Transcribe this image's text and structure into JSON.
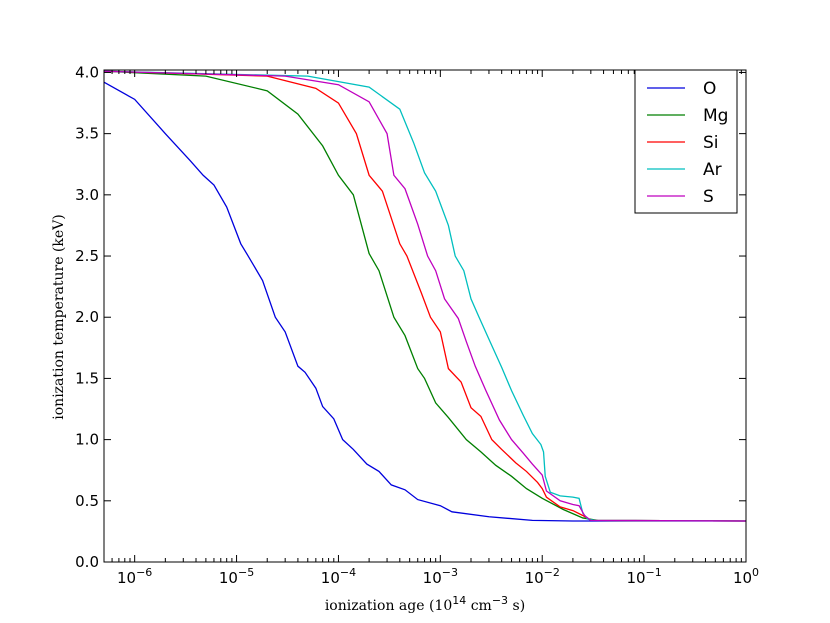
{
  "chart_data": {
    "type": "line",
    "title": "",
    "xlabel": "ionization age (10",
    "xlabel_sup1": "14",
    "xlabel_mid": " cm",
    "xlabel_sup2": "−3",
    "xlabel_end": " s)",
    "ylabel": "ionization temperature (keV)",
    "x_scale": "log",
    "xlim": [
      5e-07,
      1
    ],
    "ylim": [
      0.0,
      4.02
    ],
    "grid": false,
    "legend_position": "top-right",
    "x_ticks": [
      {
        "value": 1e-06,
        "base": "10",
        "exp": "-6"
      },
      {
        "value": 1e-05,
        "base": "10",
        "exp": "-5"
      },
      {
        "value": 0.0001,
        "base": "10",
        "exp": "-4"
      },
      {
        "value": 0.001,
        "base": "10",
        "exp": "-3"
      },
      {
        "value": 0.01,
        "base": "10",
        "exp": "-2"
      },
      {
        "value": 0.1,
        "base": "10",
        "exp": "-1"
      },
      {
        "value": 1,
        "base": "10",
        "exp": "0"
      }
    ],
    "y_ticks": [
      {
        "value": 0.0,
        "label": "0.0"
      },
      {
        "value": 0.5,
        "label": "0.5"
      },
      {
        "value": 1.0,
        "label": "1.0"
      },
      {
        "value": 1.5,
        "label": "1.5"
      },
      {
        "value": 2.0,
        "label": "2.0"
      },
      {
        "value": 2.5,
        "label": "2.5"
      },
      {
        "value": 3.0,
        "label": "3.0"
      },
      {
        "value": 3.5,
        "label": "3.5"
      },
      {
        "value": 4.0,
        "label": "4.0"
      }
    ],
    "series": [
      {
        "name": "O",
        "color": "#0000dd",
        "points": [
          [
            5e-07,
            3.92
          ],
          [
            1e-06,
            3.78
          ],
          [
            2e-06,
            3.5
          ],
          [
            3.5e-06,
            3.28
          ],
          [
            4.7e-06,
            3.16
          ],
          [
            6e-06,
            3.08
          ],
          [
            8e-06,
            2.9
          ],
          [
            1.1e-05,
            2.6
          ],
          [
            1.3e-05,
            2.5
          ],
          [
            1.8e-05,
            2.3
          ],
          [
            2.4e-05,
            2.0
          ],
          [
            3e-05,
            1.88
          ],
          [
            4e-05,
            1.6
          ],
          [
            4.7e-05,
            1.55
          ],
          [
            6e-05,
            1.42
          ],
          [
            7e-05,
            1.27
          ],
          [
            9e-05,
            1.17
          ],
          [
            0.00011,
            1.0
          ],
          [
            0.00014,
            0.92
          ],
          [
            0.00019,
            0.8
          ],
          [
            0.00025,
            0.74
          ],
          [
            0.00033,
            0.63
          ],
          [
            0.00045,
            0.59
          ],
          [
            0.0006,
            0.51
          ],
          [
            0.001,
            0.46
          ],
          [
            0.0013,
            0.41
          ],
          [
            0.003,
            0.37
          ],
          [
            0.008,
            0.34
          ],
          [
            0.02,
            0.335
          ],
          [
            1,
            0.335
          ]
        ]
      },
      {
        "name": "Mg",
        "color": "#007f00",
        "points": [
          [
            5e-07,
            4.01
          ],
          [
            5e-06,
            3.97
          ],
          [
            2e-05,
            3.85
          ],
          [
            4e-05,
            3.66
          ],
          [
            7e-05,
            3.4
          ],
          [
            0.0001,
            3.16
          ],
          [
            0.00014,
            3.0
          ],
          [
            0.0002,
            2.52
          ],
          [
            0.00025,
            2.38
          ],
          [
            0.00035,
            2.0
          ],
          [
            0.00045,
            1.85
          ],
          [
            0.0006,
            1.58
          ],
          [
            0.0007,
            1.5
          ],
          [
            0.0009,
            1.3
          ],
          [
            0.0012,
            1.18
          ],
          [
            0.0018,
            1.0
          ],
          [
            0.0025,
            0.9
          ],
          [
            0.0035,
            0.79
          ],
          [
            0.005,
            0.7
          ],
          [
            0.007,
            0.6
          ],
          [
            0.01,
            0.52
          ],
          [
            0.016,
            0.43
          ],
          [
            0.025,
            0.36
          ],
          [
            0.035,
            0.34
          ],
          [
            1,
            0.335
          ]
        ]
      },
      {
        "name": "Si",
        "color": "#ff0000",
        "points": [
          [
            5e-07,
            4.01
          ],
          [
            2e-05,
            3.97
          ],
          [
            6e-05,
            3.87
          ],
          [
            0.0001,
            3.75
          ],
          [
            0.00015,
            3.5
          ],
          [
            0.0002,
            3.16
          ],
          [
            0.00027,
            3.03
          ],
          [
            0.0004,
            2.6
          ],
          [
            0.00047,
            2.5
          ],
          [
            0.00065,
            2.2
          ],
          [
            0.0008,
            2.0
          ],
          [
            0.001,
            1.88
          ],
          [
            0.0012,
            1.58
          ],
          [
            0.0016,
            1.47
          ],
          [
            0.002,
            1.26
          ],
          [
            0.0025,
            1.19
          ],
          [
            0.0032,
            1.0
          ],
          [
            0.004,
            0.92
          ],
          [
            0.0055,
            0.81
          ],
          [
            0.007,
            0.74
          ],
          [
            0.009,
            0.65
          ],
          [
            0.01,
            0.6
          ],
          [
            0.011,
            0.53
          ],
          [
            0.015,
            0.45
          ],
          [
            0.02,
            0.42
          ],
          [
            0.025,
            0.38
          ],
          [
            0.03,
            0.34
          ],
          [
            1,
            0.335
          ]
        ]
      },
      {
        "name": "Ar",
        "color": "#00bfbf",
        "points": [
          [
            5e-07,
            4.01
          ],
          [
            5e-05,
            3.97
          ],
          [
            0.0002,
            3.88
          ],
          [
            0.0004,
            3.7
          ],
          [
            0.00055,
            3.42
          ],
          [
            0.0007,
            3.18
          ],
          [
            0.0009,
            3.03
          ],
          [
            0.0012,
            2.75
          ],
          [
            0.0014,
            2.5
          ],
          [
            0.0017,
            2.38
          ],
          [
            0.002,
            2.15
          ],
          [
            0.0024,
            2.0
          ],
          [
            0.003,
            1.82
          ],
          [
            0.004,
            1.59
          ],
          [
            0.005,
            1.4
          ],
          [
            0.0065,
            1.2
          ],
          [
            0.008,
            1.05
          ],
          [
            0.0097,
            0.96
          ],
          [
            0.0103,
            0.9
          ],
          [
            0.0107,
            0.7
          ],
          [
            0.012,
            0.57
          ],
          [
            0.015,
            0.54
          ],
          [
            0.02,
            0.53
          ],
          [
            0.023,
            0.52
          ],
          [
            0.025,
            0.4
          ],
          [
            0.028,
            0.35
          ],
          [
            0.033,
            0.34
          ],
          [
            1,
            0.335
          ]
        ]
      },
      {
        "name": "S",
        "color": "#bf00bf",
        "points": [
          [
            5e-07,
            4.01
          ],
          [
            3e-05,
            3.97
          ],
          [
            0.0001,
            3.9
          ],
          [
            0.0002,
            3.76
          ],
          [
            0.0003,
            3.5
          ],
          [
            0.00035,
            3.16
          ],
          [
            0.00045,
            3.05
          ],
          [
            0.0006,
            2.76
          ],
          [
            0.00075,
            2.5
          ],
          [
            0.0009,
            2.38
          ],
          [
            0.0011,
            2.15
          ],
          [
            0.0015,
            1.99
          ],
          [
            0.0018,
            1.8
          ],
          [
            0.0022,
            1.6
          ],
          [
            0.0028,
            1.4
          ],
          [
            0.0038,
            1.16
          ],
          [
            0.005,
            1.0
          ],
          [
            0.0065,
            0.89
          ],
          [
            0.008,
            0.8
          ],
          [
            0.01,
            0.71
          ],
          [
            0.011,
            0.58
          ],
          [
            0.015,
            0.5
          ],
          [
            0.02,
            0.47
          ],
          [
            0.023,
            0.46
          ],
          [
            0.026,
            0.38
          ],
          [
            0.03,
            0.34
          ],
          [
            1,
            0.335
          ]
        ]
      }
    ]
  }
}
